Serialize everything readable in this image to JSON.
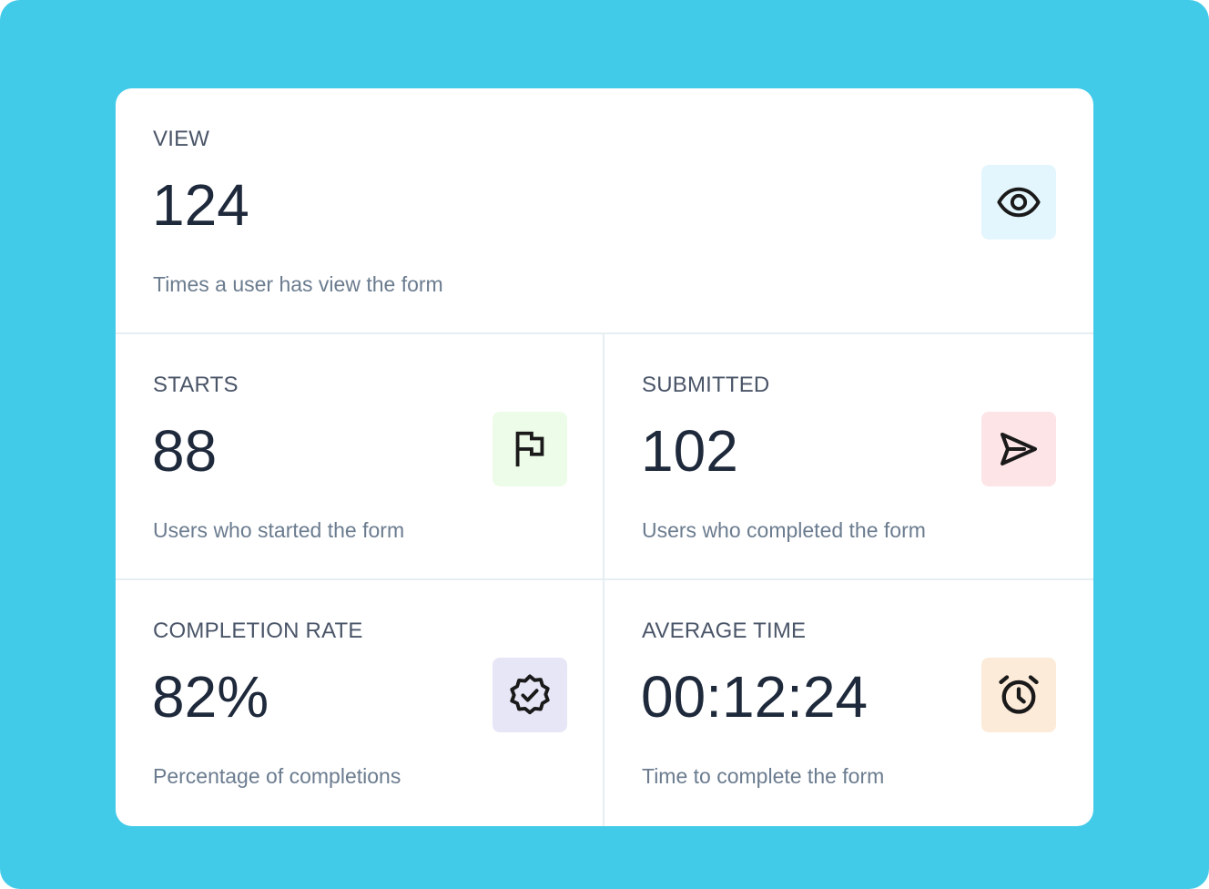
{
  "colors": {
    "background": "#42CBE8",
    "card": "#FFFFFF",
    "value_text": "#1E293B",
    "label_text": "#4A5568",
    "desc_text": "#6B7C8F"
  },
  "stats": {
    "view": {
      "label": "VIEW",
      "value": "124",
      "description": "Times a user has view the form",
      "icon": "eye-icon",
      "icon_bg": "#E4F6FD"
    },
    "starts": {
      "label": "STARTS",
      "value": "88",
      "description": "Users who started the form",
      "icon": "flag-icon",
      "icon_bg": "#EDFCE8"
    },
    "submitted": {
      "label": "SUBMITTED",
      "value": "102",
      "description": "Users who completed the form",
      "icon": "send-icon",
      "icon_bg": "#FDE4E6"
    },
    "completion_rate": {
      "label": "COMPLETION RATE",
      "value": "82%",
      "description": "Percentage of completions",
      "icon": "verified-badge-icon",
      "icon_bg": "#E6E6F7"
    },
    "average_time": {
      "label": "AVERAGE TIME",
      "value": "00:12:24",
      "description": "Time to complete the form",
      "icon": "alarm-clock-icon",
      "icon_bg": "#FDEBD9"
    }
  }
}
